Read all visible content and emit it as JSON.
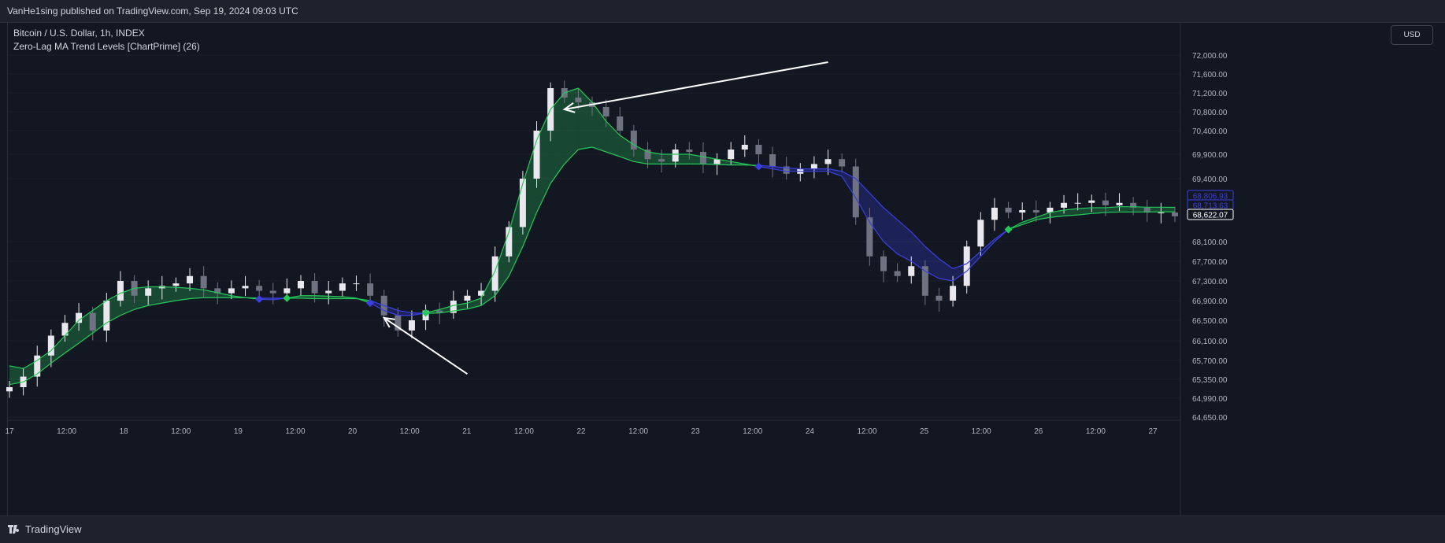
{
  "header": {
    "published": "VanHe1sing published on TradingView.com, Sep 19, 2024 09:03 UTC"
  },
  "legend": {
    "symbol": "Bitcoin / U.S. Dollar, 1h, INDEX",
    "indicator": "Zero-Lag MA Trend Levels [ChartPrime] (26)"
  },
  "currency_button": "USD",
  "footer": {
    "brand": "TradingView"
  },
  "colors": {
    "background": "#131722",
    "bull": "#26c85a",
    "bear": "#3b3fe0",
    "candle_up": "#e8e8ee",
    "candle_down": "#6f7280",
    "arrow": "#ffffff"
  },
  "chart_data": {
    "type": "candlestick",
    "title": "",
    "x_ticks": [
      "17",
      "12:00",
      "18",
      "12:00",
      "19",
      "12:00",
      "20",
      "12:00",
      "21",
      "12:00",
      "22",
      "12:00",
      "23",
      "12:00",
      "24",
      "12:00",
      "25",
      "12:00",
      "26",
      "12:00",
      "27"
    ],
    "y_ticks": [
      "72,000.00",
      "71,600.00",
      "71,200.00",
      "70,800.00",
      "70,400.00",
      "69,900.00",
      "69,400.00",
      "68,100.00",
      "67,700.00",
      "67,300.00",
      "66,900.00",
      "66,500.00",
      "66,100.00",
      "65,700.00",
      "65,350.00",
      "64,990.00",
      "64,650.00"
    ],
    "ylim": [
      64450,
      72300
    ],
    "price_labels": [
      {
        "value": "68,806.93",
        "color": "#3b3fe0"
      },
      {
        "value": "68,713.63",
        "color": "#3b3fe0"
      },
      {
        "value": "68,622.07",
        "color": "#ffffff"
      }
    ],
    "close_series": [
      65200,
      65400,
      65800,
      66200,
      66450,
      66650,
      66300,
      66900,
      67300,
      67000,
      67150,
      67200,
      67250,
      67400,
      67150,
      67050,
      67150,
      67200,
      67100,
      67050,
      67150,
      67300,
      67050,
      67100,
      67250,
      67250,
      67000,
      66600,
      66300,
      66500,
      66700,
      66650,
      66900,
      67000,
      67100,
      67800,
      68400,
      69400,
      70400,
      71300,
      71100,
      71000,
      70900,
      70700,
      70400,
      70000,
      69800,
      69750,
      70000,
      69950,
      69700,
      69800,
      70000,
      70100,
      69900,
      69650,
      69500,
      69600,
      69700,
      69800,
      69650,
      68600,
      67800,
      67500,
      67400,
      67600,
      67000,
      66900,
      67200,
      68000,
      68550,
      68800,
      68700,
      68750,
      68700,
      68800,
      68900,
      68900,
      68950,
      68850,
      68900,
      68800,
      68700,
      68700,
      68622
    ],
    "zlma_series": [
      65600,
      65550,
      65700,
      65900,
      66200,
      66500,
      66700,
      66900,
      67050,
      67150,
      67180,
      67180,
      67170,
      67150,
      67120,
      67060,
      67000,
      66960,
      66930,
      66920,
      66950,
      67000,
      67000,
      66990,
      66980,
      66950,
      66850,
      66700,
      66600,
      66600,
      66650,
      66720,
      66800,
      66850,
      66950,
      67500,
      68300,
      69300,
      70200,
      70850,
      71200,
      71300,
      71000,
      70600,
      70300,
      70100,
      69950,
      69900,
      69900,
      69900,
      69850,
      69800,
      69750,
      69700,
      69650,
      69600,
      69550,
      69550,
      69550,
      69550,
      69450,
      69000,
      68500,
      68100,
      67850,
      67700,
      67500,
      67350,
      67300,
      67500,
      67800,
      68100,
      68350,
      68500,
      68600,
      68700,
      68750,
      68780,
      68800,
      68800,
      68820,
      68820,
      68810,
      68810,
      68807
    ],
    "ema_series": [
      65250,
      65300,
      65450,
      65650,
      65850,
      66050,
      66250,
      66450,
      66600,
      66720,
      66800,
      66850,
      66900,
      66940,
      66960,
      66960,
      66960,
      66960,
      66950,
      66950,
      66950,
      66950,
      66940,
      66940,
      66940,
      66940,
      66900,
      66800,
      66700,
      66650,
      66640,
      66650,
      66690,
      66730,
      66800,
      67000,
      67400,
      68000,
      68700,
      69300,
      69700,
      70000,
      70050,
      69950,
      69850,
      69750,
      69700,
      69700,
      69700,
      69700,
      69700,
      69690,
      69680,
      69680,
      69670,
      69650,
      69620,
      69600,
      69600,
      69600,
      69550,
      69400,
      69100,
      68800,
      68550,
      68300,
      68000,
      67750,
      67550,
      67650,
      67900,
      68150,
      68350,
      68450,
      68550,
      68600,
      68630,
      68650,
      68680,
      68700,
      68710,
      68710,
      68710,
      68715,
      68714
    ],
    "annotations": [
      {
        "type": "arrow",
        "from": [
          59,
          71850
        ],
        "to": [
          40,
          70850
        ]
      },
      {
        "type": "arrow",
        "from": [
          33,
          65450
        ],
        "to": [
          27,
          66550
        ]
      }
    ]
  }
}
